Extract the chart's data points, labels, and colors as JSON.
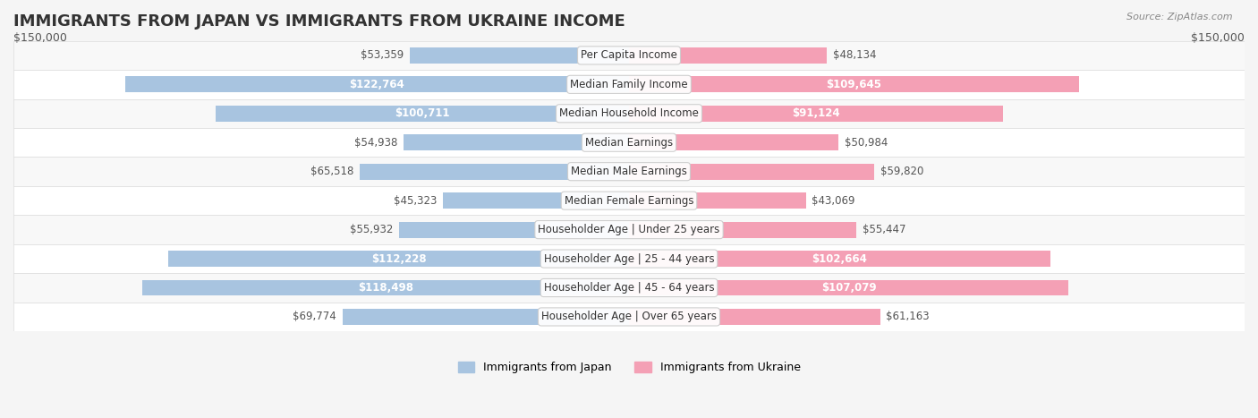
{
  "title": "IMMIGRANTS FROM JAPAN VS IMMIGRANTS FROM UKRAINE INCOME",
  "source": "Source: ZipAtlas.com",
  "categories": [
    "Per Capita Income",
    "Median Family Income",
    "Median Household Income",
    "Median Earnings",
    "Median Male Earnings",
    "Median Female Earnings",
    "Householder Age | Under 25 years",
    "Householder Age | 25 - 44 years",
    "Householder Age | 45 - 64 years",
    "Householder Age | Over 65 years"
  ],
  "japan_values": [
    53359,
    122764,
    100711,
    54938,
    65518,
    45323,
    55932,
    112228,
    118498,
    69774
  ],
  "ukraine_values": [
    48134,
    109645,
    91124,
    50984,
    59820,
    43069,
    55447,
    102664,
    107079,
    61163
  ],
  "japan_labels": [
    "$53,359",
    "$122,764",
    "$100,711",
    "$54,938",
    "$65,518",
    "$45,323",
    "$55,932",
    "$112,228",
    "$118,498",
    "$69,774"
  ],
  "ukraine_labels": [
    "$48,134",
    "$109,645",
    "$91,124",
    "$50,984",
    "$59,820",
    "$43,069",
    "$55,447",
    "$102,664",
    "$107,079",
    "$61,163"
  ],
  "japan_color": "#a8c4e0",
  "ukraine_color": "#f4a0b5",
  "japan_label_color_threshold": 80000,
  "ukraine_label_color_threshold": 80000,
  "japan_legend": "Immigrants from Japan",
  "ukraine_legend": "Immigrants from Ukraine",
  "max_value": 150000,
  "xlabel_left": "$150,000",
  "xlabel_right": "$150,000",
  "bg_color": "#f5f5f5",
  "row_bg_color": "#ffffff",
  "row_alt_bg_color": "#eeeeee",
  "title_fontsize": 13,
  "label_fontsize": 9,
  "category_fontsize": 9
}
